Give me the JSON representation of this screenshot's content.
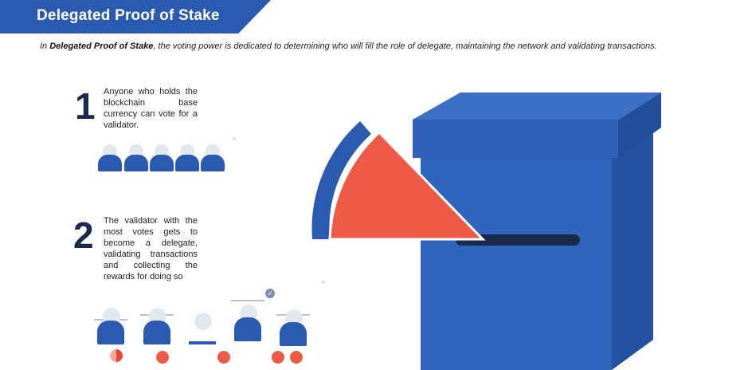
{
  "header": {
    "title": "Delegated Proof of Stake"
  },
  "intro": {
    "prefix": "In ",
    "term": "Delegated Proof of Stake",
    "suffix": ", the voting power is dedicated to determining who will fill the role of delegate, maintaining the network and validating transactions."
  },
  "steps": [
    {
      "number": "1",
      "text": "Anyone who holds the blockchain base currency can vote for a validator."
    },
    {
      "number": "2",
      "text": "The validator with the most votes gets to become a delegate, validating transactions and collecting the rewards for doing so"
    }
  ],
  "icons": {
    "voter": "person-icon",
    "validator": "person-icon",
    "vote": "vote-token-icon",
    "selected": "check-badge-icon",
    "ballot_box": "ballot-box-icon",
    "ballot": "ballot-pie-icon"
  },
  "colors": {
    "brand_blue": "#2a5bb0",
    "box_blue": "#2f62b8",
    "accent_red": "#ef5a47",
    "dark_navy": "#1b2a4a"
  }
}
